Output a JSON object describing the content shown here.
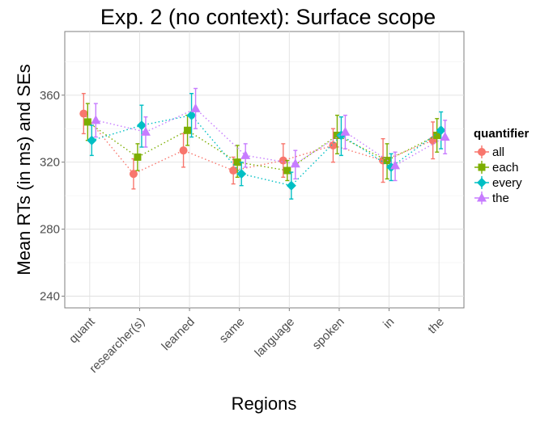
{
  "chart_data": {
    "type": "line",
    "title": "Exp. 2 (no context): Surface scope",
    "xlabel": "Regions",
    "ylabel": "Mean RTs (in ms) and SEs",
    "categories": [
      "quant",
      "researcher(s)",
      "learned",
      "same",
      "language",
      "spoken",
      "in",
      "the"
    ],
    "ylim": [
      233,
      398
    ],
    "yticks": [
      240,
      280,
      320,
      360
    ],
    "grid": true,
    "legend": {
      "title": "quantifier",
      "position": "right"
    },
    "series": [
      {
        "name": "all",
        "color": "#F8766D",
        "marker": "circle",
        "values": [
          349,
          313,
          327,
          315,
          321,
          330,
          321,
          333
        ],
        "lower": [
          337,
          304,
          317,
          307,
          311,
          320,
          308,
          322
        ],
        "upper": [
          361,
          322,
          337,
          323,
          331,
          340,
          334,
          344
        ]
      },
      {
        "name": "each",
        "color": "#7CAE00",
        "marker": "square",
        "values": [
          344,
          323,
          339,
          320,
          315,
          336,
          321,
          336
        ],
        "lower": [
          333,
          315,
          330,
          311,
          309,
          325,
          310,
          326
        ],
        "upper": [
          355,
          331,
          348,
          330,
          321,
          348,
          331,
          346
        ]
      },
      {
        "name": "every",
        "color": "#00BFC4",
        "marker": "diamond",
        "values": [
          333,
          342,
          348,
          313,
          306,
          336,
          317,
          339
        ],
        "lower": [
          324,
          329,
          335,
          306,
          298,
          324,
          309,
          328
        ],
        "upper": [
          342,
          354,
          361,
          320,
          314,
          347,
          325,
          350
        ]
      },
      {
        "name": "the",
        "color": "#C77CFF",
        "marker": "triangle",
        "values": [
          345,
          338,
          352,
          324,
          319,
          338,
          318,
          335
        ],
        "lower": [
          335,
          329,
          340,
          317,
          310,
          328,
          309,
          325
        ],
        "upper": [
          355,
          347,
          364,
          331,
          327,
          348,
          326,
          345
        ]
      }
    ]
  }
}
